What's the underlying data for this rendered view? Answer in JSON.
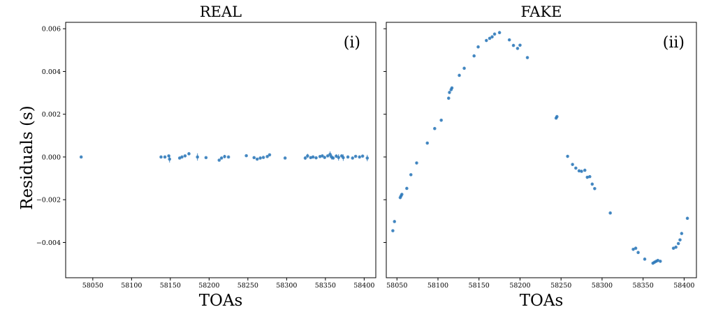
{
  "chart_data": [
    {
      "type": "scatter",
      "title": "REAL",
      "annotation": "(i)",
      "xlabel": "TOAs",
      "ylabel": "Residuals (s)",
      "xlim": [
        58015,
        58415
      ],
      "ylim": [
        -0.00565,
        0.0063
      ],
      "xticks": [
        58050,
        58100,
        58150,
        58200,
        58250,
        58300,
        58350,
        58400
      ],
      "yticks": [
        -0.004,
        -0.002,
        0.0,
        0.002,
        0.004,
        0.006
      ],
      "ytick_labels": [
        "−0.004",
        "−0.002",
        "0.000",
        "0.002",
        "0.004",
        "0.006"
      ],
      "series": [
        {
          "color": "#2a76b8",
          "x": [
            58035,
            58138,
            58143,
            58148,
            58149,
            58162,
            58165,
            58169,
            58174,
            58185,
            58196,
            58213,
            58216,
            58220,
            58225,
            58248,
            58258,
            58262,
            58266,
            58270,
            58275,
            58278,
            58298,
            58324,
            58327,
            58331,
            58334,
            58338,
            58343,
            58346,
            58349,
            58353,
            58356,
            58358,
            58360,
            58364,
            58367,
            58371,
            58373,
            58379,
            58385,
            58389,
            58394,
            58398,
            58404
          ],
          "y": [
            0.0,
            0.0,
            0.0,
            5e-05,
            -0.0001,
            -5e-05,
            0.0,
            5e-05,
            0.00015,
            0.0,
            -3e-05,
            -0.00015,
            -5e-05,
            2e-05,
            0.0,
            6e-05,
            -3e-05,
            -0.0001,
            -5e-05,
            -2e-05,
            2e-05,
            0.0001,
            -5e-05,
            -5e-05,
            5e-05,
            -3e-05,
            0.0,
            -4e-05,
            2e-05,
            5e-05,
            -2e-05,
            5e-05,
            0.00012,
            0.0,
            -5e-05,
            4e-05,
            -2e-05,
            5e-05,
            -3e-05,
            0.0,
            -5e-05,
            3e-05,
            0.0,
            4e-05,
            -5e-05
          ],
          "yerr": [
            3e-05,
            3e-05,
            5e-05,
            5e-05,
            0.00016,
            4e-05,
            3e-05,
            5e-05,
            6e-05,
            0.00017,
            3e-05,
            3e-05,
            5e-05,
            8e-05,
            3e-05,
            3e-05,
            5e-05,
            4e-05,
            6e-05,
            3e-05,
            4e-05,
            5e-05,
            3e-05,
            8e-05,
            0.0001,
            5e-05,
            6e-05,
            5e-05,
            4e-05,
            6e-05,
            5e-05,
            5e-05,
            0.00014,
            0.00012,
            6e-05,
            8e-05,
            0.00015,
            6e-05,
            0.00015,
            5e-05,
            4e-05,
            4e-05,
            6e-05,
            5e-05,
            0.00015
          ]
        }
      ]
    },
    {
      "type": "scatter",
      "title": "FAKE",
      "annotation": "(ii)",
      "xlabel": "TOAs",
      "ylabel": "",
      "xlim": [
        58037,
        58415
      ],
      "ylim": [
        -0.00565,
        0.0063
      ],
      "xticks": [
        58050,
        58100,
        58150,
        58200,
        58250,
        58300,
        58350,
        58400
      ],
      "yticks": [
        -0.004,
        -0.002,
        0.0,
        0.002,
        0.004,
        0.006
      ],
      "ytick_labels": [],
      "series": [
        {
          "color": "#2a76b8",
          "x": [
            58045,
            58047,
            58054,
            58055,
            58056,
            58062,
            58067,
            58074,
            58087,
            58096,
            58104,
            58113,
            58114,
            58116,
            58117,
            58126,
            58132,
            58144,
            58149,
            58159,
            58163,
            58166,
            58169,
            58175,
            58187,
            58192,
            58197,
            58200,
            58209,
            58244,
            58245,
            58258,
            58264,
            58268,
            58272,
            58275,
            58279,
            58282,
            58285,
            58288,
            58291,
            58310,
            58338,
            58341,
            58344,
            58352,
            58362,
            58364,
            58366,
            58368,
            58371,
            58387,
            58390,
            58393,
            58395,
            58397,
            58404
          ],
          "y": [
            -0.00345,
            -0.00302,
            -0.0019,
            -0.00182,
            -0.00175,
            -0.00147,
            -0.00083,
            -0.00028,
            0.00065,
            0.00133,
            0.00172,
            0.00275,
            0.00302,
            0.00315,
            0.00323,
            0.00382,
            0.00415,
            0.00473,
            0.00515,
            0.00545,
            0.00555,
            0.00562,
            0.00575,
            0.00582,
            0.00548,
            0.00522,
            0.00508,
            0.00523,
            0.00465,
            0.00182,
            0.00189,
            3e-05,
            -0.00035,
            -0.00052,
            -0.00065,
            -0.00067,
            -0.00062,
            -0.00095,
            -0.00092,
            -0.00127,
            -0.00148,
            -0.00262,
            -0.00432,
            -0.00427,
            -0.00447,
            -0.00478,
            -0.00497,
            -0.00492,
            -0.00488,
            -0.00484,
            -0.00488,
            -0.00427,
            -0.00422,
            -0.00405,
            -0.00388,
            -0.00358,
            -0.00287
          ],
          "yerr": [
            5e-05,
            5e-05,
            5e-05,
            6e-05,
            5e-05,
            5e-05,
            5e-05,
            5e-05,
            5e-05,
            5e-05,
            5e-05,
            6e-05,
            5e-05,
            5e-05,
            5e-05,
            5e-05,
            5e-05,
            5e-05,
            5e-05,
            5e-05,
            5e-05,
            5e-05,
            5e-05,
            6e-05,
            5e-05,
            5e-05,
            5e-05,
            5e-05,
            5e-05,
            6e-05,
            5e-05,
            5e-05,
            5e-05,
            5e-05,
            5e-05,
            5e-05,
            5e-05,
            6e-05,
            5e-05,
            5e-05,
            5e-05,
            5e-05,
            5e-05,
            5e-05,
            5e-05,
            5e-05,
            5e-05,
            6e-05,
            5e-05,
            5e-05,
            5e-05,
            5e-05,
            5e-05,
            5e-05,
            5e-05,
            5e-05,
            5e-05
          ]
        }
      ]
    }
  ]
}
